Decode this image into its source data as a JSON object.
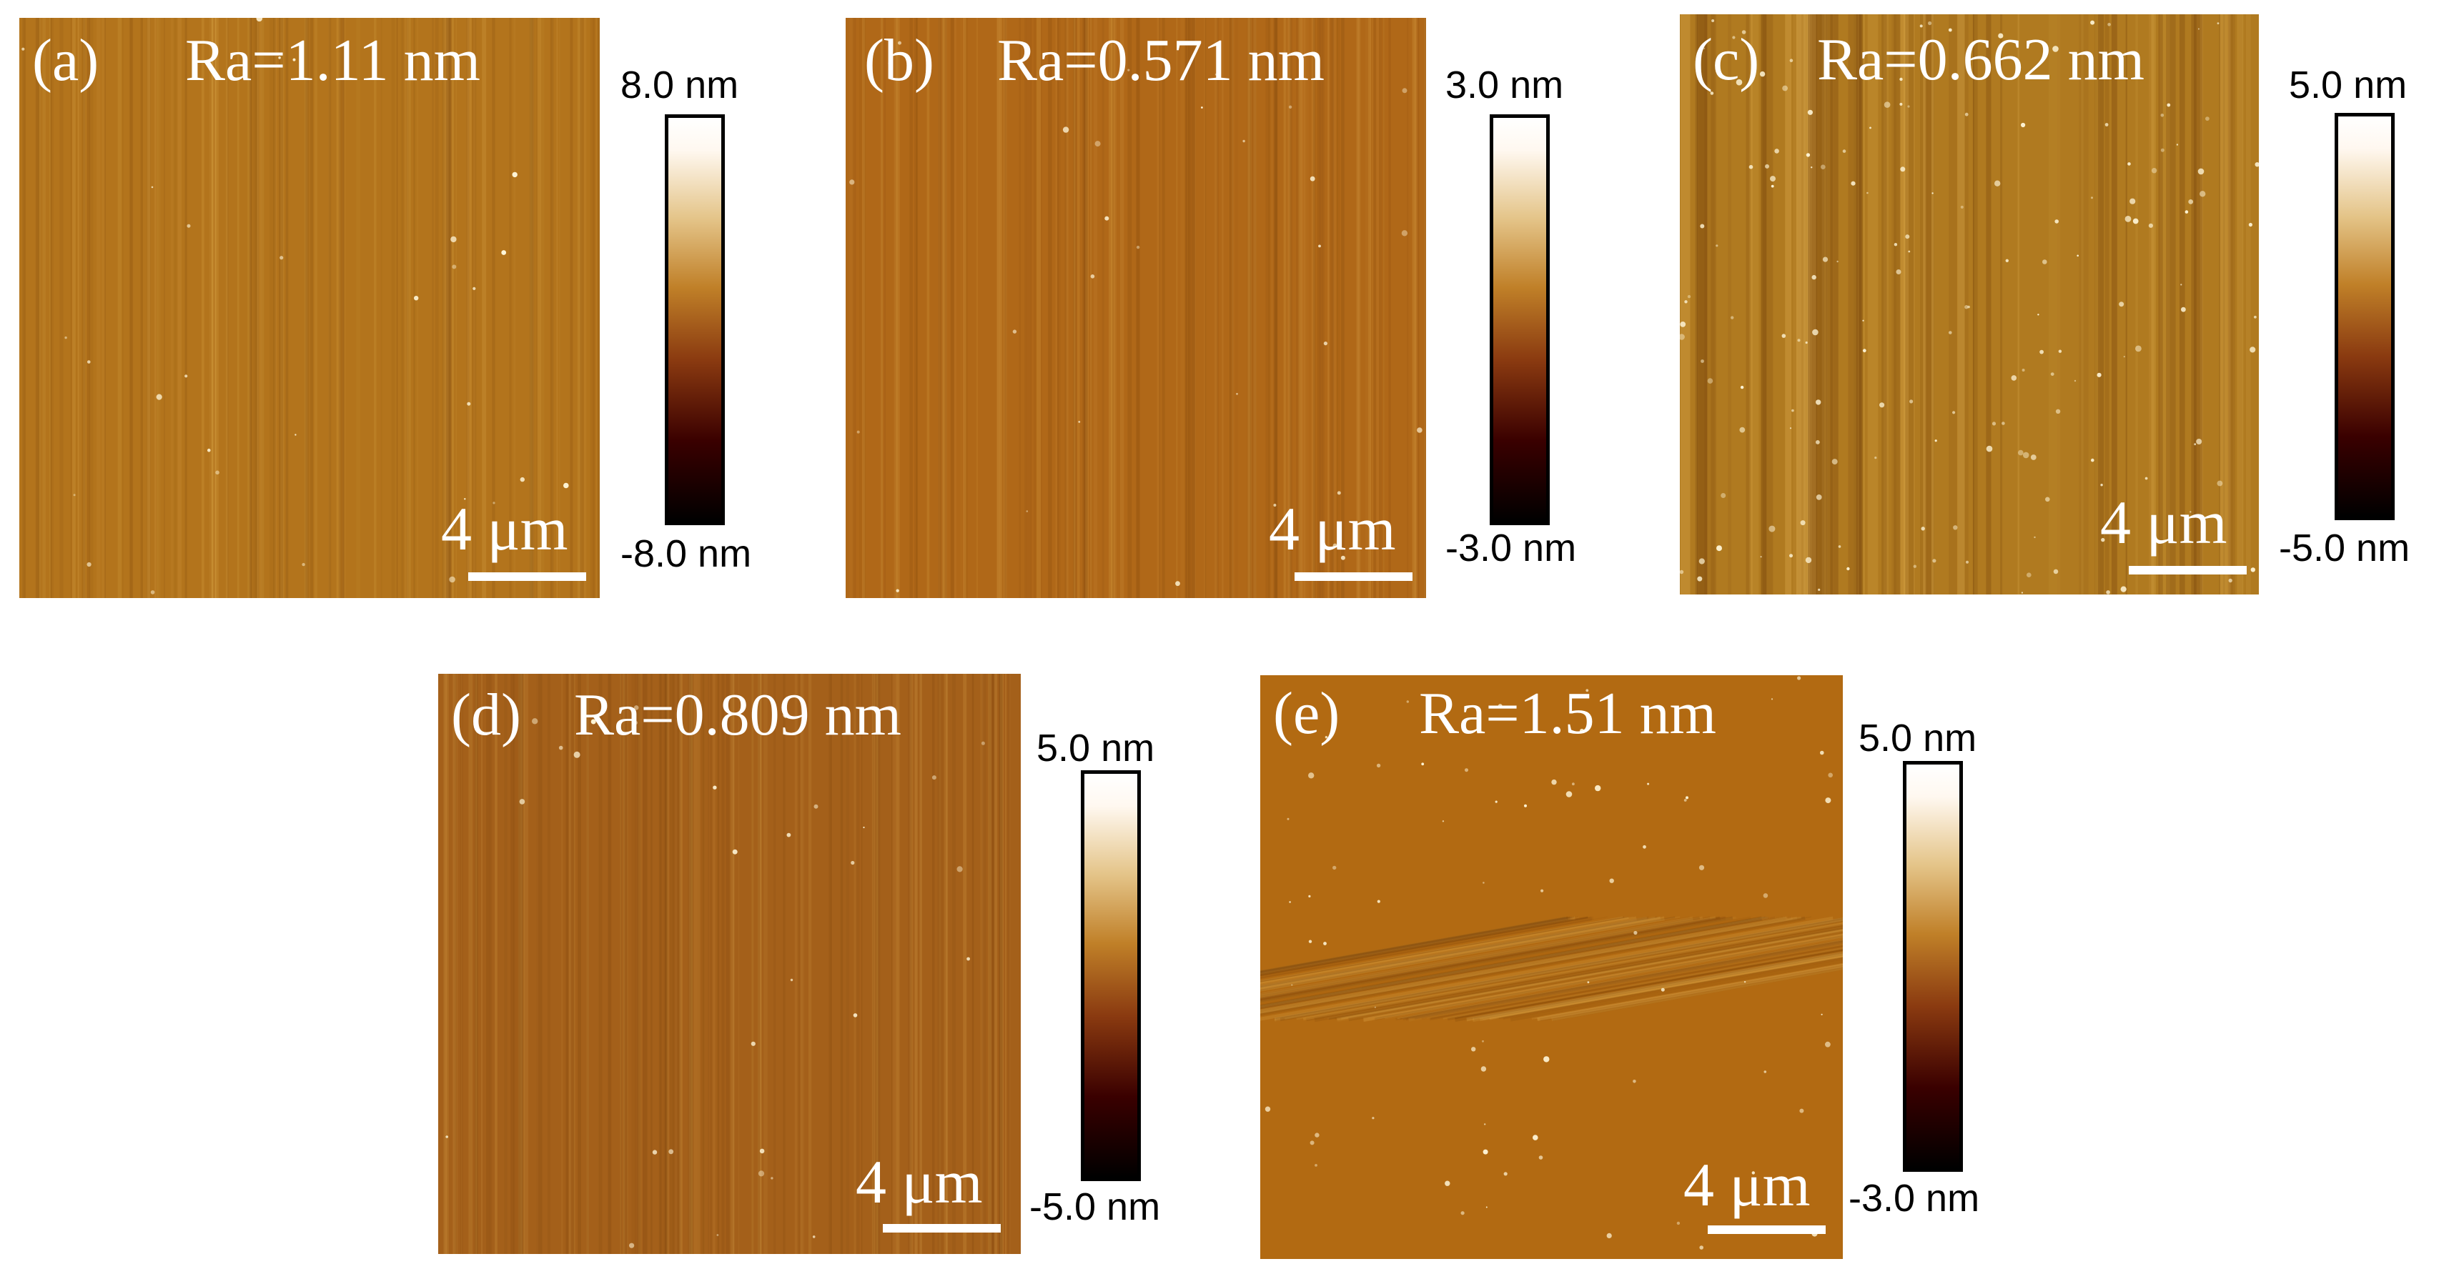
{
  "panels": [
    {
      "label": "(a)",
      "ra": "Ra=1.11 nm",
      "scale": "4 μm",
      "cbar_top": "8.0 nm",
      "cbar_bottom": "-8.0 nm",
      "color": "#b3741c"
    },
    {
      "label": "(b)",
      "ra": "Ra=0.571 nm",
      "scale": "4 μm",
      "cbar_top": "3.0 nm",
      "cbar_bottom": "-3.0 nm",
      "color": "#b06818"
    },
    {
      "label": "(c)",
      "ra": "Ra=0.662 nm",
      "scale": "4 μm",
      "cbar_top": "5.0 nm",
      "cbar_bottom": "-5.0 nm",
      "color": "#b07a20"
    },
    {
      "label": "(d)",
      "ra": "Ra=0.809 nm",
      "scale": "4 μm",
      "cbar_top": "5.0 nm",
      "cbar_bottom": "-5.0 nm",
      "color": "#a4601a"
    },
    {
      "label": "(e)",
      "ra": "Ra=1.51 nm",
      "scale": "4 μm",
      "cbar_top": "5.0 nm",
      "cbar_bottom": "-3.0 nm",
      "color": "#b26a12"
    }
  ]
}
